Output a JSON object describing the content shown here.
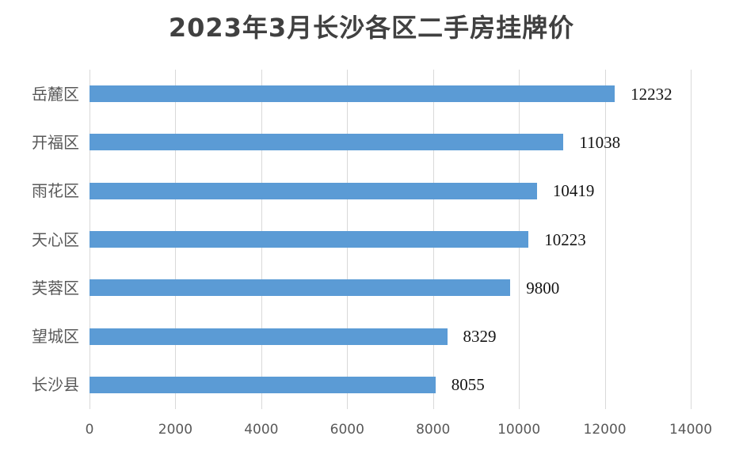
{
  "chart_data": {
    "type": "bar",
    "orientation": "horizontal",
    "title": "2023年3月长沙各区二手房挂牌价",
    "categories": [
      "岳麓区",
      "开福区",
      "雨花区",
      "天心区",
      "芙蓉区",
      "望城区",
      "长沙县"
    ],
    "values": [
      12232,
      11038,
      10419,
      10223,
      9800,
      8329,
      8055
    ],
    "value_labels": [
      "12232",
      "11038",
      "10419",
      "10223",
      "9800",
      "8329",
      "8055"
    ],
    "xlabel": "",
    "ylabel": "",
    "xlim": [
      0,
      14000
    ],
    "x_ticks": [
      0,
      2000,
      4000,
      6000,
      8000,
      10000,
      12000,
      14000
    ],
    "x_tick_labels": [
      "0",
      "2000",
      "4000",
      "6000",
      "8000",
      "10000",
      "12000",
      "14000"
    ],
    "grid": "vertical",
    "legend_position": "none",
    "colors": {
      "bar": "#5b9bd5",
      "gridline": "#d9d9d9",
      "title": "#404040",
      "category_label": "#595959",
      "tick_label": "#595959",
      "value_label": "#141414",
      "background": "#ffffff"
    }
  }
}
